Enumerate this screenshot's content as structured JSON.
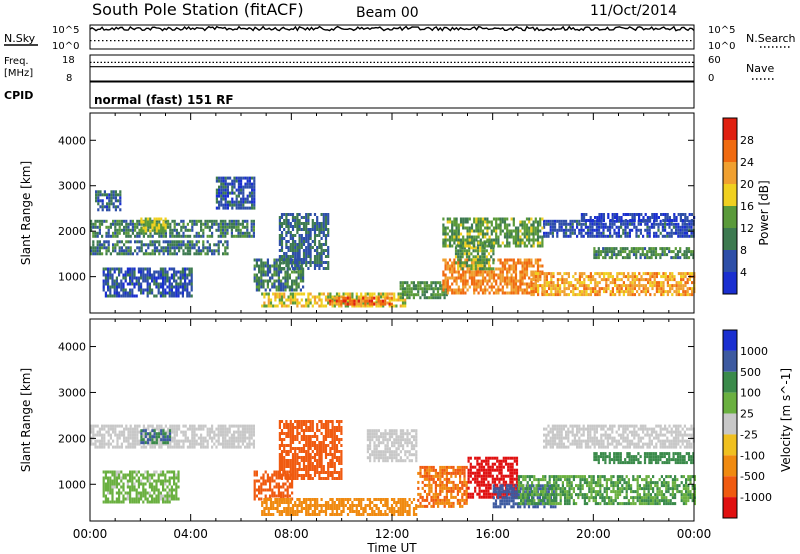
{
  "header": {
    "station": "South Pole Station (fitACF)",
    "beam": "Beam 00",
    "date": "11/Oct/2014"
  },
  "noise_panel": {
    "left_label": "N.Sky",
    "left_tick_top": "10^5",
    "left_tick_bottom": "10^0",
    "right_tick_top": "10^5",
    "right_tick_bottom": "10^0",
    "right_label": "N.Search",
    "sky_level": 0.85,
    "search_level": 0.35
  },
  "freq_panel": {
    "left_label_1": "Freq.",
    "left_label_2": "[MHz]",
    "left_tick_top": "18",
    "left_tick_bottom": "8",
    "right_tick_top": "60",
    "right_tick_bottom": "0",
    "right_label": "Nave",
    "freq_level": 0.55,
    "nave_level": 0.6
  },
  "cpid_panel": {
    "label": "CPID",
    "text": "normal (fast) 151 RF"
  },
  "colors": {
    "power": [
      "#1a2fd0",
      "#2e4fa8",
      "#3d7a50",
      "#5a9a3a",
      "#f0d020",
      "#f0a030",
      "#f06a10",
      "#e02010"
    ],
    "velocity": [
      "#1a2fd0",
      "#3d5aa0",
      "#3a8a4a",
      "#6ab040",
      "#c8c8c8",
      "#f0c020",
      "#f08a10",
      "#f05a10",
      "#e01010"
    ]
  },
  "chart_data": [
    {
      "type": "heatmap",
      "panel": "power",
      "ylabel": "Slant Range [km]",
      "xlabel": "",
      "x_ticks": [
        "00:00",
        "04:00",
        "08:00",
        "12:00",
        "16:00",
        "20:00",
        "00:00"
      ],
      "y_ticks": [
        "1000",
        "2000",
        "3000",
        "4000"
      ],
      "ylim": [
        200,
        4600
      ],
      "xlim": [
        0,
        24
      ],
      "colorbar_label": "Power [dB]",
      "colorbar_ticks": [
        "4",
        "8",
        "12",
        "16",
        "20",
        "24",
        "28"
      ],
      "colorbar_range": [
        0,
        32
      ],
      "regions": [
        {
          "t0": 0.0,
          "t1": 6.5,
          "r0": 1900,
          "r1": 2250,
          "v": 10
        },
        {
          "t0": 0.0,
          "t1": 5.5,
          "r0": 1500,
          "r1": 1800,
          "v": 9
        },
        {
          "t0": 0.2,
          "t1": 1.2,
          "r0": 2500,
          "r1": 2900,
          "v": 7
        },
        {
          "t0": 0.5,
          "t1": 4.0,
          "r0": 600,
          "r1": 1200,
          "v": 6
        },
        {
          "t0": 2.0,
          "t1": 3.0,
          "r0": 2000,
          "r1": 2300,
          "v": 16
        },
        {
          "t0": 5.0,
          "t1": 6.5,
          "r0": 2500,
          "r1": 3200,
          "v": 6
        },
        {
          "t0": 6.5,
          "t1": 8.5,
          "r0": 700,
          "r1": 1400,
          "v": 10
        },
        {
          "t0": 7.5,
          "t1": 9.5,
          "r0": 1200,
          "r1": 2400,
          "v": 8
        },
        {
          "t0": 6.8,
          "t1": 12.5,
          "r0": 350,
          "r1": 650,
          "v": 18
        },
        {
          "t0": 9.5,
          "t1": 12.0,
          "r0": 420,
          "r1": 560,
          "v": 26
        },
        {
          "t0": 12.3,
          "t1": 14.2,
          "r0": 550,
          "r1": 900,
          "v": 12
        },
        {
          "t0": 14.0,
          "t1": 18.0,
          "r0": 650,
          "r1": 1400,
          "v": 24
        },
        {
          "t0": 14.5,
          "t1": 16.0,
          "r0": 1200,
          "r1": 1800,
          "v": 14
        },
        {
          "t0": 17.5,
          "t1": 24.0,
          "r0": 600,
          "r1": 1100,
          "v": 22
        },
        {
          "t0": 18.0,
          "t1": 24.0,
          "r0": 1900,
          "r1": 2250,
          "v": 5
        },
        {
          "t0": 20.0,
          "t1": 24.0,
          "r0": 1450,
          "r1": 1650,
          "v": 11
        },
        {
          "t0": 19.5,
          "t1": 24.0,
          "r0": 2250,
          "r1": 2400,
          "v": 4
        },
        {
          "t0": 14.0,
          "t1": 18.0,
          "r0": 1700,
          "r1": 2300,
          "v": 13
        }
      ]
    },
    {
      "type": "heatmap",
      "panel": "velocity",
      "ylabel": "Slant Range [km]",
      "xlabel": "Time UT",
      "x_ticks": [
        "00:00",
        "04:00",
        "08:00",
        "12:00",
        "16:00",
        "20:00",
        "00:00"
      ],
      "y_ticks": [
        "1000",
        "2000",
        "3000",
        "4000"
      ],
      "ylim": [
        200,
        4600
      ],
      "xlim": [
        0,
        24
      ],
      "colorbar_label": "Velocity [m s^-1]",
      "colorbar_ticks": [
        "1000",
        "500",
        "100",
        "25",
        "-25",
        "-100",
        "-500",
        "-1000"
      ],
      "regions": [
        {
          "t0": 0.0,
          "t1": 6.5,
          "r0": 1800,
          "r1": 2300,
          "v": 0
        },
        {
          "t0": 0.5,
          "t1": 3.5,
          "r0": 600,
          "r1": 1300,
          "v": 40
        },
        {
          "t0": 2.0,
          "t1": 3.2,
          "r0": 1900,
          "r1": 2200,
          "v": 300
        },
        {
          "t0": 6.5,
          "t1": 8.0,
          "r0": 700,
          "r1": 1300,
          "v": -400
        },
        {
          "t0": 7.5,
          "t1": 10.0,
          "r0": 1100,
          "r1": 2400,
          "v": -600
        },
        {
          "t0": 6.8,
          "t1": 13.0,
          "r0": 350,
          "r1": 700,
          "v": -150
        },
        {
          "t0": 11.0,
          "t1": 13.0,
          "r0": 1500,
          "r1": 2200,
          "v": 0
        },
        {
          "t0": 13.0,
          "t1": 15.0,
          "r0": 500,
          "r1": 1400,
          "v": -300
        },
        {
          "t0": 15.0,
          "t1": 17.0,
          "r0": 700,
          "r1": 1600,
          "v": -800
        },
        {
          "t0": 16.0,
          "t1": 18.5,
          "r0": 500,
          "r1": 1000,
          "v": 600
        },
        {
          "t0": 17.0,
          "t1": 24.0,
          "r0": 600,
          "r1": 1200,
          "v": 60
        },
        {
          "t0": 18.0,
          "t1": 24.0,
          "r0": 1800,
          "r1": 2300,
          "v": 0
        },
        {
          "t0": 20.0,
          "t1": 24.0,
          "r0": 1450,
          "r1": 1700,
          "v": 200
        }
      ]
    }
  ]
}
